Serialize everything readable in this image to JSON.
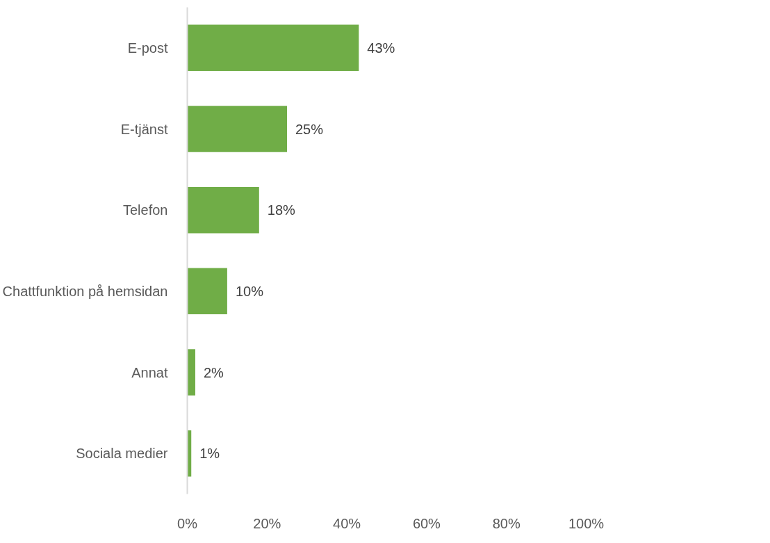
{
  "chart_data": {
    "type": "bar",
    "orientation": "horizontal",
    "categories": [
      "E-post",
      "E-tjänst",
      "Telefon",
      "Chattfunktion på hemsidan",
      "Annat",
      "Sociala medier"
    ],
    "values": [
      43,
      25,
      18,
      10,
      2,
      1
    ],
    "value_labels": [
      "43%",
      "25%",
      "18%",
      "10%",
      "2%",
      "1%"
    ],
    "color": "#70ad47",
    "xlim": [
      0,
      100
    ],
    "xticks": [
      {
        "value": 0,
        "label": "0%"
      },
      {
        "value": 20,
        "label": "20%"
      },
      {
        "value": 40,
        "label": "40%"
      },
      {
        "value": 60,
        "label": "60%"
      },
      {
        "value": 80,
        "label": "80%"
      },
      {
        "value": 100,
        "label": "100%"
      }
    ],
    "grid": false
  }
}
